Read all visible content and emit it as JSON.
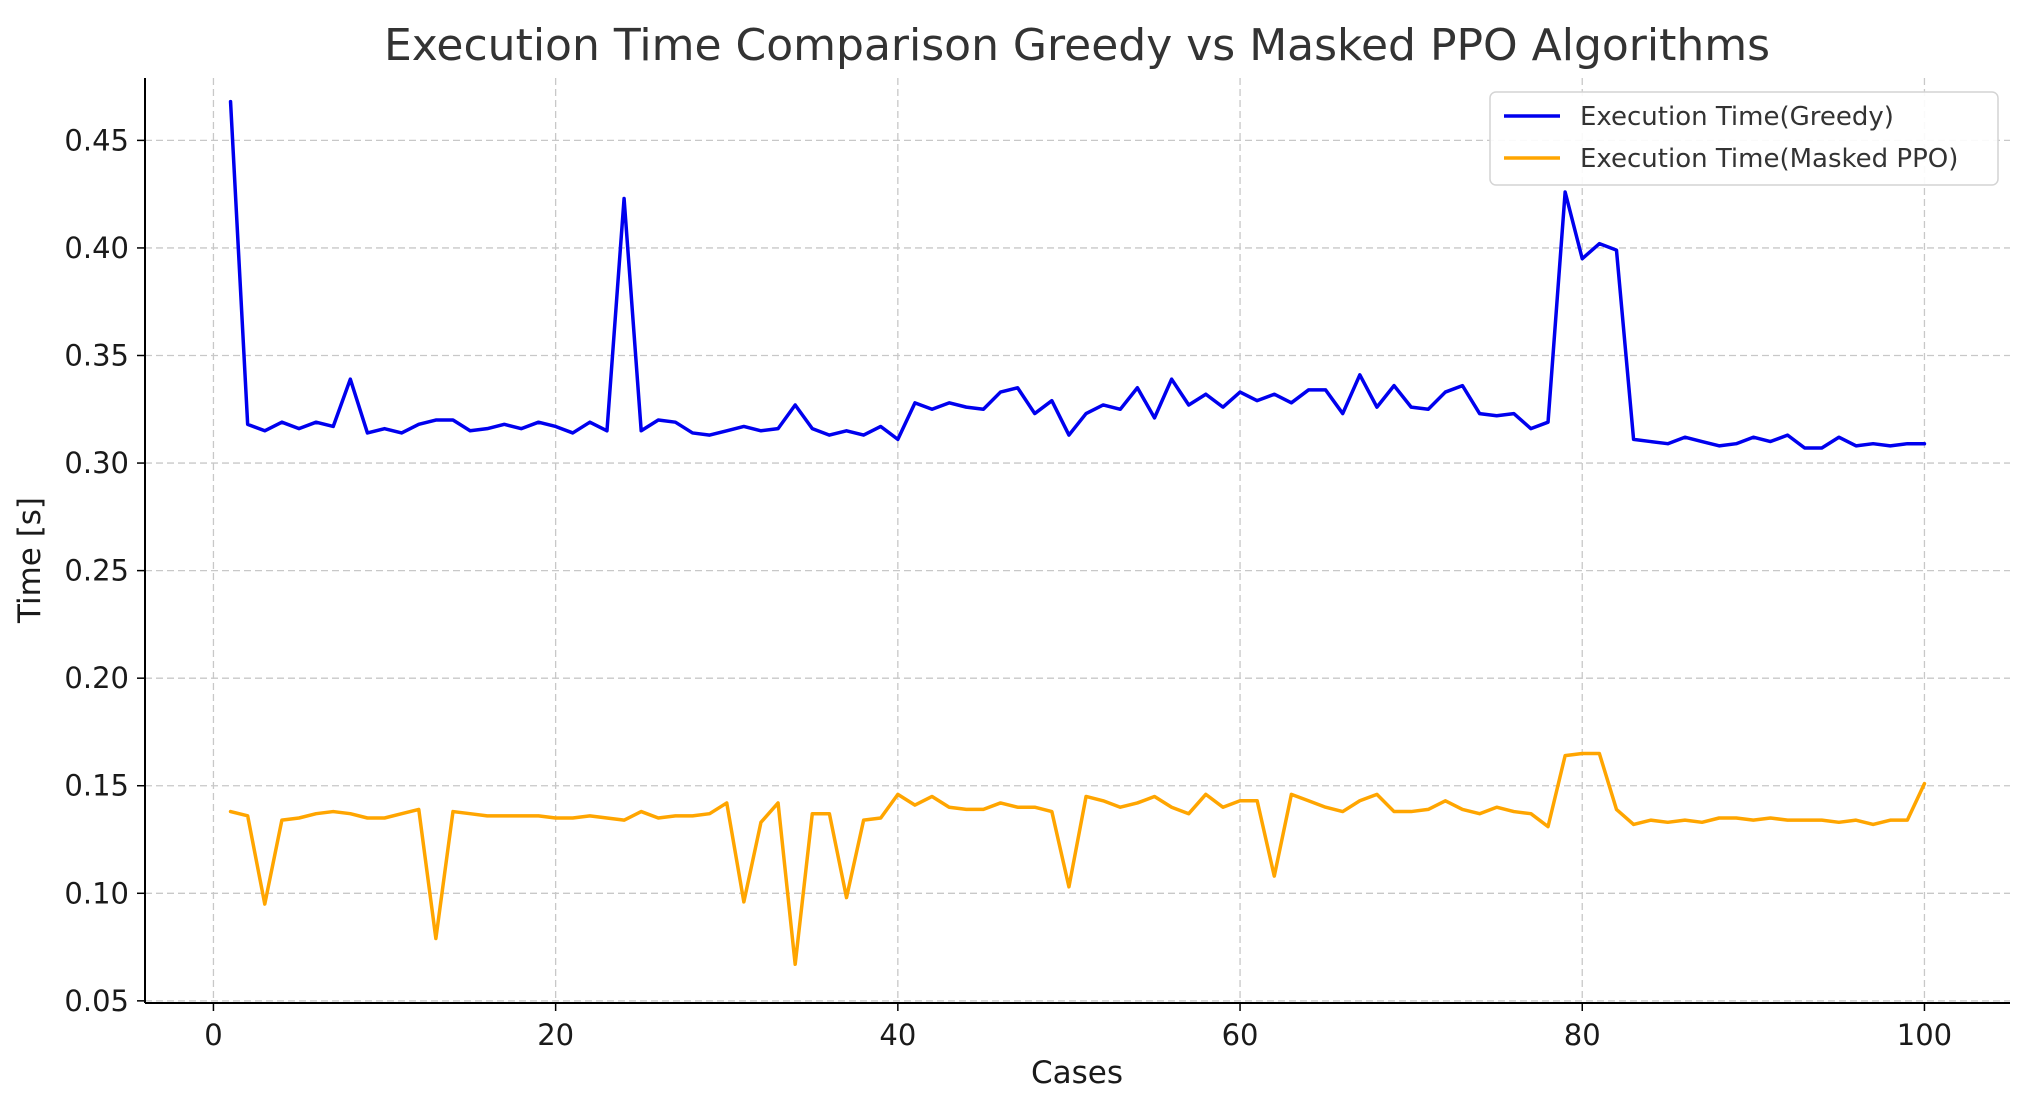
{
  "chart_data": {
    "type": "line",
    "title": "Execution Time Comparison Greedy vs Masked PPO Algorithms",
    "xlabel": "Cases",
    "ylabel": "Time [s]",
    "xlim": [
      -4,
      105
    ],
    "ylim": [
      0.049,
      0.479
    ],
    "grid": true,
    "legend_position": "top-right",
    "x_ticks": [
      0,
      20,
      40,
      60,
      80,
      100
    ],
    "x_tick_labels": [
      "0",
      "20",
      "40",
      "60",
      "80",
      "100"
    ],
    "y_ticks": [
      0.05,
      0.1,
      0.15,
      0.2,
      0.25,
      0.3,
      0.35,
      0.4,
      0.45
    ],
    "y_tick_labels": [
      "0.05",
      "0.10",
      "0.15",
      "0.20",
      "0.25",
      "0.30",
      "0.35",
      "0.40",
      "0.45"
    ],
    "x": [
      1,
      2,
      3,
      4,
      5,
      6,
      7,
      8,
      9,
      10,
      11,
      12,
      13,
      14,
      15,
      16,
      17,
      18,
      19,
      20,
      21,
      22,
      23,
      24,
      25,
      26,
      27,
      28,
      29,
      30,
      31,
      32,
      33,
      34,
      35,
      36,
      37,
      38,
      39,
      40,
      41,
      42,
      43,
      44,
      45,
      46,
      47,
      48,
      49,
      50,
      51,
      52,
      53,
      54,
      55,
      56,
      57,
      58,
      59,
      60,
      61,
      62,
      63,
      64,
      65,
      66,
      67,
      68,
      69,
      70,
      71,
      72,
      73,
      74,
      75,
      76,
      77,
      78,
      79,
      80,
      81,
      82,
      83,
      84,
      85,
      86,
      87,
      88,
      89,
      90,
      91,
      92,
      93,
      94,
      95,
      96,
      97,
      98,
      99,
      100
    ],
    "series": [
      {
        "name": "Execution Time(Greedy)",
        "color": "#0000ee",
        "values": [
          0.468,
          0.318,
          0.315,
          0.319,
          0.316,
          0.319,
          0.317,
          0.339,
          0.314,
          0.316,
          0.314,
          0.318,
          0.32,
          0.32,
          0.315,
          0.316,
          0.318,
          0.316,
          0.319,
          0.317,
          0.314,
          0.319,
          0.315,
          0.423,
          0.315,
          0.32,
          0.319,
          0.314,
          0.313,
          0.315,
          0.317,
          0.315,
          0.316,
          0.327,
          0.316,
          0.313,
          0.315,
          0.313,
          0.317,
          0.311,
          0.328,
          0.325,
          0.328,
          0.326,
          0.325,
          0.333,
          0.335,
          0.323,
          0.329,
          0.313,
          0.323,
          0.327,
          0.325,
          0.335,
          0.321,
          0.339,
          0.327,
          0.332,
          0.326,
          0.333,
          0.329,
          0.332,
          0.328,
          0.334,
          0.334,
          0.323,
          0.341,
          0.326,
          0.336,
          0.326,
          0.325,
          0.333,
          0.336,
          0.323,
          0.322,
          0.323,
          0.316,
          0.319,
          0.426,
          0.395,
          0.402,
          0.399,
          0.311,
          0.31,
          0.309,
          0.312,
          0.31,
          0.308,
          0.309,
          0.312,
          0.31,
          0.313,
          0.307,
          0.307,
          0.312,
          0.308,
          0.309,
          0.308,
          0.309,
          0.309
        ]
      },
      {
        "name": "Execution Time(Masked PPO)",
        "color": "#ffa500",
        "values": [
          0.138,
          0.136,
          0.095,
          0.134,
          0.135,
          0.137,
          0.138,
          0.137,
          0.135,
          0.135,
          0.137,
          0.139,
          0.079,
          0.138,
          0.137,
          0.136,
          0.136,
          0.136,
          0.136,
          0.135,
          0.135,
          0.136,
          0.135,
          0.134,
          0.138,
          0.135,
          0.136,
          0.136,
          0.137,
          0.142,
          0.096,
          0.133,
          0.142,
          0.067,
          0.137,
          0.137,
          0.098,
          0.134,
          0.135,
          0.146,
          0.141,
          0.145,
          0.14,
          0.139,
          0.139,
          0.142,
          0.14,
          0.14,
          0.138,
          0.103,
          0.145,
          0.143,
          0.14,
          0.142,
          0.145,
          0.14,
          0.137,
          0.146,
          0.14,
          0.143,
          0.143,
          0.108,
          0.146,
          0.143,
          0.14,
          0.138,
          0.143,
          0.146,
          0.138,
          0.138,
          0.139,
          0.143,
          0.139,
          0.137,
          0.14,
          0.138,
          0.137,
          0.131,
          0.164,
          0.165,
          0.165,
          0.139,
          0.132,
          0.134,
          0.133,
          0.134,
          0.133,
          0.135,
          0.135,
          0.134,
          0.135,
          0.134,
          0.134,
          0.134,
          0.133,
          0.134,
          0.132,
          0.134,
          0.134,
          0.151
        ]
      }
    ]
  }
}
